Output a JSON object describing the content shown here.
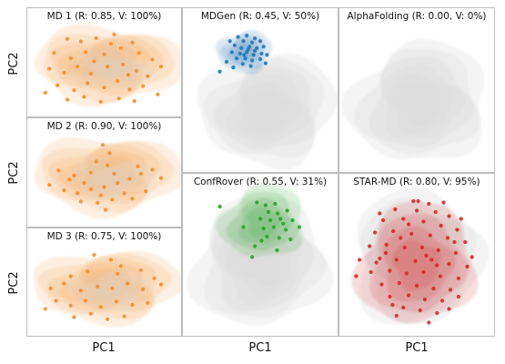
{
  "axes": {
    "x_label": "PC1",
    "y_label": "PC2"
  },
  "colors": {
    "md": "#f28e2b",
    "mdgen": "#1f77b4",
    "alphafolding": "#999999",
    "confrover": "#2ca02c",
    "starmd": "#d62728",
    "reference_density": "#d9d9d9",
    "frame": "#bdbdbd"
  },
  "chart_data": [
    {
      "type": "scatter",
      "title": "MD 1 (R: 0.85, V: 100%)",
      "xlabel": "",
      "ylabel": "PC2",
      "grid": false,
      "color": "#f28e2b",
      "points": [
        [
          -0.55,
          0.72
        ],
        [
          -0.35,
          0.66
        ],
        [
          -0.12,
          0.74
        ],
        [
          0.15,
          0.83
        ],
        [
          0.42,
          0.63
        ],
        [
          -0.75,
          0.38
        ],
        [
          -0.5,
          0.25
        ],
        [
          -0.28,
          0.4
        ],
        [
          0.0,
          0.35
        ],
        [
          0.25,
          0.5
        ],
        [
          0.52,
          0.38
        ],
        [
          0.72,
          0.22
        ],
        [
          -0.82,
          0.0
        ],
        [
          -0.6,
          -0.1
        ],
        [
          -0.4,
          0.05
        ],
        [
          -0.2,
          -0.12
        ],
        [
          0.05,
          0.05
        ],
        [
          0.28,
          0.1
        ],
        [
          0.48,
          -0.05
        ],
        [
          0.65,
          -0.18
        ],
        [
          -0.7,
          -0.4
        ],
        [
          -0.45,
          -0.52
        ],
        [
          -0.25,
          -0.35
        ],
        [
          0.0,
          -0.45
        ],
        [
          0.2,
          -0.3
        ],
        [
          0.38,
          -0.5
        ],
        [
          0.58,
          -0.42
        ],
        [
          -0.55,
          -0.75
        ],
        [
          -0.3,
          -0.68
        ],
        [
          -0.05,
          -0.8
        ],
        [
          0.22,
          -0.72
        ],
        [
          0.45,
          -0.78
        ],
        [
          0.8,
          -0.62
        ],
        [
          -0.88,
          -0.58
        ],
        [
          0.1,
          0.6
        ],
        [
          -0.15,
          0.18
        ],
        [
          0.36,
          -0.15
        ],
        [
          0.85,
          0.05
        ]
      ]
    },
    {
      "type": "scatter",
      "title": "MD 2 (R: 0.90, V: 100%)",
      "xlabel": "",
      "ylabel": "PC2",
      "grid": false,
      "color": "#f28e2b",
      "points": [
        [
          -0.02,
          0.82
        ],
        [
          0.08,
          0.62
        ],
        [
          -0.12,
          0.42
        ],
        [
          0.05,
          0.32
        ],
        [
          -0.68,
          0.2
        ],
        [
          -0.45,
          0.08
        ],
        [
          -0.52,
          -0.02
        ],
        [
          -0.3,
          -0.1
        ],
        [
          -0.6,
          -0.28
        ],
        [
          -0.4,
          -0.35
        ],
        [
          -0.2,
          -0.25
        ],
        [
          0.0,
          -0.2
        ],
        [
          0.2,
          -0.1
        ],
        [
          0.38,
          0.0
        ],
        [
          0.55,
          0.12
        ],
        [
          0.72,
          0.22
        ],
        [
          0.85,
          0.02
        ],
        [
          0.3,
          -0.35
        ],
        [
          0.12,
          -0.5
        ],
        [
          -0.1,
          -0.58
        ],
        [
          0.02,
          -0.75
        ],
        [
          -0.35,
          -0.55
        ],
        [
          0.42,
          -0.48
        ],
        [
          0.62,
          -0.3
        ],
        [
          0.15,
          0.12
        ],
        [
          -0.2,
          0.15
        ],
        [
          -0.82,
          -0.15
        ],
        [
          0.5,
          0.3
        ],
        [
          -0.05,
          -0.4
        ]
      ]
    },
    {
      "type": "scatter",
      "title": "MD 3 (R: 0.75, V: 100%)",
      "xlabel": "PC1",
      "ylabel": "PC2",
      "grid": false,
      "color": "#f28e2b",
      "points": [
        [
          -0.15,
          0.82
        ],
        [
          0.1,
          0.7
        ],
        [
          -0.5,
          0.3
        ],
        [
          -0.25,
          0.42
        ],
        [
          0.2,
          0.36
        ],
        [
          0.55,
          0.45
        ],
        [
          0.75,
          0.25
        ],
        [
          -0.8,
          0.0
        ],
        [
          -0.6,
          0.12
        ],
        [
          -0.35,
          -0.05
        ],
        [
          -0.1,
          0.05
        ],
        [
          0.12,
          0.0
        ],
        [
          0.35,
          0.12
        ],
        [
          0.58,
          -0.02
        ],
        [
          -0.72,
          -0.3
        ],
        [
          -0.5,
          -0.42
        ],
        [
          -0.28,
          -0.3
        ],
        [
          -0.05,
          -0.45
        ],
        [
          0.18,
          -0.32
        ],
        [
          0.42,
          -0.4
        ],
        [
          0.65,
          -0.35
        ],
        [
          -0.45,
          -0.7
        ],
        [
          -0.2,
          -0.62
        ],
        [
          0.05,
          -0.75
        ],
        [
          0.3,
          -0.68
        ],
        [
          0.85,
          0.1
        ],
        [
          -0.88,
          -0.5
        ],
        [
          0.25,
          0.55
        ]
      ]
    },
    {
      "type": "scatter",
      "title": "MDGen (R: 0.45, V: 50%)",
      "xlabel": "",
      "ylabel": "",
      "grid": false,
      "color": "#1f77b4",
      "points": [
        [
          -0.33,
          0.86
        ],
        [
          -0.2,
          0.88
        ],
        [
          -0.08,
          0.84
        ],
        [
          -0.25,
          0.8
        ],
        [
          -0.12,
          0.78
        ],
        [
          0.0,
          0.8
        ],
        [
          -0.38,
          0.74
        ],
        [
          -0.28,
          0.7
        ],
        [
          -0.16,
          0.72
        ],
        [
          -0.05,
          0.7
        ],
        [
          0.05,
          0.72
        ],
        [
          -0.42,
          0.64
        ],
        [
          -0.3,
          0.62
        ],
        [
          -0.2,
          0.64
        ],
        [
          -0.1,
          0.6
        ],
        [
          0.02,
          0.62
        ],
        [
          -0.35,
          0.55
        ],
        [
          -0.22,
          0.55
        ],
        [
          -0.12,
          0.52
        ],
        [
          0.0,
          0.54
        ],
        [
          -0.5,
          0.5
        ],
        [
          -0.26,
          0.47
        ],
        [
          -0.14,
          0.44
        ],
        [
          -0.4,
          0.42
        ],
        [
          -0.6,
          0.36
        ],
        [
          0.1,
          0.6
        ],
        [
          -0.45,
          0.8
        ],
        [
          -0.18,
          0.68
        ],
        [
          -0.08,
          0.66
        ],
        [
          -0.24,
          0.6
        ],
        [
          0.08,
          0.48
        ]
      ]
    },
    {
      "type": "scatter",
      "title": "AlphaFolding (R: 0.00, V: 0%)",
      "xlabel": "",
      "ylabel": "",
      "grid": false,
      "color": "#999999",
      "points": []
    },
    {
      "type": "scatter",
      "title": "ConfRover (R: 0.55, V: 31%)",
      "xlabel": "PC1",
      "ylabel": "",
      "grid": false,
      "color": "#2ca02c",
      "points": [
        [
          -0.05,
          0.86
        ],
        [
          0.08,
          0.82
        ],
        [
          0.22,
          0.84
        ],
        [
          -0.6,
          0.8
        ],
        [
          0.12,
          0.72
        ],
        [
          0.26,
          0.7
        ],
        [
          0.4,
          0.74
        ],
        [
          0.0,
          0.62
        ],
        [
          0.15,
          0.6
        ],
        [
          0.3,
          0.62
        ],
        [
          0.48,
          0.6
        ],
        [
          -0.25,
          0.5
        ],
        [
          0.05,
          0.48
        ],
        [
          0.2,
          0.5
        ],
        [
          0.38,
          0.46
        ],
        [
          0.58,
          0.5
        ],
        [
          0.1,
          0.36
        ],
        [
          0.28,
          0.34
        ],
        [
          0.45,
          0.32
        ],
        [
          -0.08,
          0.22
        ],
        [
          0.25,
          0.16
        ],
        [
          -0.12,
          0.06
        ],
        [
          0.02,
          0.3
        ],
        [
          0.34,
          0.55
        ]
      ]
    },
    {
      "type": "scatter",
      "title": "STAR-MD (R: 0.80, V: 95%)",
      "xlabel": "PC1",
      "ylabel": "",
      "grid": false,
      "color": "#d62728",
      "points": [
        [
          -0.05,
          0.88
        ],
        [
          0.18,
          0.84
        ],
        [
          -0.32,
          0.76
        ],
        [
          0.0,
          0.74
        ],
        [
          0.28,
          0.72
        ],
        [
          0.48,
          0.66
        ],
        [
          -0.5,
          0.6
        ],
        [
          -0.2,
          0.62
        ],
        [
          0.1,
          0.58
        ],
        [
          0.36,
          0.52
        ],
        [
          0.6,
          0.46
        ],
        [
          -0.62,
          0.42
        ],
        [
          -0.35,
          0.44
        ],
        [
          -0.08,
          0.4
        ],
        [
          0.2,
          0.38
        ],
        [
          0.46,
          0.34
        ],
        [
          0.72,
          0.28
        ],
        [
          -0.7,
          0.22
        ],
        [
          -0.45,
          0.24
        ],
        [
          -0.18,
          0.2
        ],
        [
          0.08,
          0.2
        ],
        [
          0.32,
          0.16
        ],
        [
          0.58,
          0.12
        ],
        [
          -0.85,
          0.02
        ],
        [
          -0.55,
          0.04
        ],
        [
          -0.3,
          0.02
        ],
        [
          -0.02,
          0.0
        ],
        [
          0.22,
          0.02
        ],
        [
          0.48,
          -0.04
        ],
        [
          0.75,
          -0.08
        ],
        [
          -0.68,
          -0.16
        ],
        [
          -0.4,
          -0.14
        ],
        [
          -0.15,
          -0.18
        ],
        [
          0.1,
          -0.16
        ],
        [
          0.35,
          -0.22
        ],
        [
          0.62,
          -0.25
        ],
        [
          -0.52,
          -0.34
        ],
        [
          -0.26,
          -0.32
        ],
        [
          0.0,
          -0.36
        ],
        [
          0.25,
          -0.4
        ],
        [
          0.5,
          -0.42
        ],
        [
          -0.4,
          -0.52
        ],
        [
          -0.12,
          -0.5
        ],
        [
          0.12,
          -0.56
        ],
        [
          0.38,
          -0.58
        ],
        [
          0.62,
          -0.52
        ],
        [
          -0.2,
          -0.68
        ],
        [
          0.05,
          -0.72
        ],
        [
          0.3,
          -0.76
        ],
        [
          0.18,
          -0.9
        ],
        [
          -0.55,
          0.7
        ],
        [
          0.4,
          0.86
        ],
        [
          -0.3,
          -0.8
        ],
        [
          0.82,
          0.06
        ],
        [
          -0.9,
          -0.22
        ],
        [
          0.66,
          0.62
        ],
        [
          -0.12,
          0.54
        ],
        [
          0.14,
          0.08
        ],
        [
          -0.36,
          -0.64
        ],
        [
          0.48,
          -0.7
        ],
        [
          0.56,
          0.28
        ],
        [
          -0.6,
          -0.02
        ],
        [
          0.02,
          0.88
        ],
        [
          -0.24,
          0.34
        ],
        [
          0.3,
          -0.06
        ],
        [
          -0.46,
          0.12
        ]
      ]
    }
  ]
}
